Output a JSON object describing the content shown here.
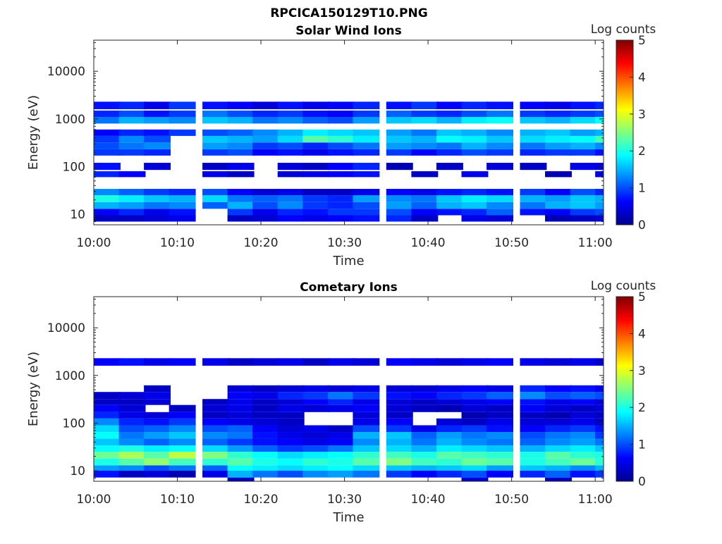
{
  "figure": {
    "filename": "RPCICA150129T10.PNG"
  },
  "colormap": {
    "name": "jet",
    "label": "Log counts",
    "range": [
      0,
      5
    ],
    "ticks": [
      "0",
      "1",
      "2",
      "3",
      "4",
      "5"
    ],
    "stops": [
      "#00008f",
      "#0000ff",
      "#0080ff",
      "#00ffff",
      "#80ff80",
      "#ffff00",
      "#ff8000",
      "#ff0000",
      "#800000"
    ]
  },
  "chart_data": [
    {
      "type": "heatmap",
      "title": "Solar Wind Ions",
      "xlabel": "Time",
      "ylabel": "Energy (eV)",
      "yscale": "log",
      "ylim": [
        6,
        45000
      ],
      "xlim": [
        "10:00",
        "11:01"
      ],
      "x_ticks": [
        "10:00",
        "10:10",
        "10:20",
        "10:30",
        "10:40",
        "10:50",
        "11:00"
      ],
      "y_ticks": [
        "10",
        "100",
        "1000",
        "10000"
      ],
      "time_columns": [
        "10:00",
        "10:03",
        "10:06",
        "10:09",
        "10:13",
        "10:16",
        "10:19",
        "10:22",
        "10:25",
        "10:28",
        "10:31",
        "10:35",
        "10:38",
        "10:41",
        "10:44",
        "10:47",
        "10:51",
        "10:54",
        "10:57",
        "11:00"
      ],
      "bands": [
        {
          "e_min": 7,
          "e_max": 9.5,
          "values": [
            0.3,
            0.3,
            0.4,
            0.5,
            0,
            0.3,
            0.4,
            0.6,
            0.5,
            0.6,
            0.7,
            0.8,
            0.3,
            0,
            0.5,
            0.4,
            0,
            0.2,
            0.3,
            0.4
          ]
        },
        {
          "e_min": 9.5,
          "e_max": 13,
          "values": [
            0.6,
            0.8,
            0.5,
            0.7,
            0,
            0.9,
            0.5,
            0.8,
            0.7,
            0.9,
            0.9,
            1.0,
            0.6,
            0.7,
            0.8,
            1.1,
            0.7,
            0.6,
            0.9,
            1.0
          ]
        },
        {
          "e_min": 13,
          "e_max": 18,
          "values": [
            1.5,
            1.4,
            1.2,
            1.3,
            1.1,
            1.5,
            1.0,
            1.3,
            0.9,
            0.8,
            1.0,
            1.4,
            1.1,
            1.5,
            1.6,
            1.3,
            1.2,
            1.5,
            1.6,
            1.4
          ]
        },
        {
          "e_min": 18,
          "e_max": 25,
          "values": [
            2.0,
            1.8,
            1.6,
            1.5,
            1.7,
            1.2,
            1.1,
            1.2,
            0.9,
            0.8,
            1.4,
            1.3,
            1.2,
            1.6,
            1.8,
            1.7,
            1.5,
            1.4,
            1.6,
            1.5
          ]
        },
        {
          "e_min": 25,
          "e_max": 34,
          "values": [
            1.3,
            1.1,
            0.9,
            0.8,
            1.0,
            0.6,
            0.4,
            0.5,
            0.3,
            0.3,
            0.5,
            0.6,
            0.5,
            0.7,
            0.8,
            0.7,
            0.9,
            0.6,
            1.0,
            0.8
          ]
        },
        {
          "e_min": 60,
          "e_max": 80,
          "values": [
            0.8,
            0.6,
            0,
            0,
            0.5,
            0.3,
            0,
            0.4,
            0.5,
            0.6,
            0.7,
            0,
            0.3,
            0,
            0.5,
            0,
            0,
            0.2,
            0,
            0.4
          ]
        },
        {
          "e_min": 85,
          "e_max": 120,
          "values": [
            0.7,
            0,
            0.4,
            0,
            0.3,
            0.5,
            0,
            0.4,
            0.3,
            0.6,
            0.8,
            0.2,
            0,
            0.3,
            0,
            0.4,
            0.3,
            0,
            0.5,
            0.4
          ]
        },
        {
          "e_min": 170,
          "e_max": 230,
          "values": [
            0.9,
            0.9,
            0.8,
            0,
            0.9,
            1.0,
            0.6,
            0.7,
            0.5,
            0.7,
            0.8,
            0.9,
            0.6,
            0.8,
            1.0,
            0.9,
            0.8,
            0.9,
            0.9,
            0.7
          ]
        },
        {
          "e_min": 230,
          "e_max": 320,
          "values": [
            1.0,
            1.2,
            1.3,
            0,
            1.4,
            1.3,
            0.9,
            1.0,
            0.8,
            1.0,
            1.2,
            1.4,
            1.3,
            1.2,
            1.5,
            1.3,
            1.2,
            1.4,
            1.5,
            1.3
          ]
        },
        {
          "e_min": 320,
          "e_max": 440,
          "values": [
            0.9,
            1.3,
            1.0,
            0,
            1.6,
            1.5,
            1.4,
            1.7,
            2.3,
            2.1,
            1.8,
            1.6,
            1.5,
            1.9,
            1.8,
            1.6,
            1.7,
            1.8,
            1.9,
            2.2
          ]
        },
        {
          "e_min": 440,
          "e_max": 600,
          "values": [
            0.6,
            0.8,
            0.7,
            0.9,
            1.0,
            1.1,
            1.3,
            1.5,
            1.8,
            1.7,
            1.6,
            1.4,
            1.2,
            1.6,
            1.5,
            1.3,
            1.5,
            1.6,
            1.4,
            1.5
          ]
        },
        {
          "e_min": 800,
          "e_max": 1100,
          "values": [
            1.2,
            1.5,
            1.4,
            1.3,
            1.6,
            1.5,
            1.2,
            1.3,
            1.1,
            1.0,
            1.4,
            1.6,
            1.7,
            1.5,
            1.8,
            1.9,
            1.6,
            1.5,
            1.7,
            1.9
          ]
        },
        {
          "e_min": 1100,
          "e_max": 1500,
          "values": [
            0.8,
            1.0,
            0.7,
            0.9,
            1.2,
            1.0,
            0.8,
            0.9,
            0.7,
            0.6,
            0.9,
            1.1,
            0.9,
            0.8,
            1.0,
            1.2,
            0.9,
            0.8,
            0.9,
            1.0
          ]
        },
        {
          "e_min": 1600,
          "e_max": 2300,
          "values": [
            0.7,
            0.8,
            0.5,
            0.9,
            0.7,
            0.6,
            0.4,
            0.7,
            0.5,
            0.6,
            0.8,
            0.7,
            0.9,
            0.6,
            0.8,
            0.7,
            0.6,
            0.5,
            0.7,
            0.8
          ]
        }
      ]
    },
    {
      "type": "heatmap",
      "title": "Cometary Ions",
      "xlabel": "Time",
      "ylabel": "Energy (eV)",
      "yscale": "log",
      "ylim": [
        6,
        45000
      ],
      "xlim": [
        "10:00",
        "11:01"
      ],
      "x_ticks": [
        "10:00",
        "10:10",
        "10:20",
        "10:30",
        "10:40",
        "10:50",
        "11:00"
      ],
      "y_ticks": [
        "10",
        "100",
        "1000",
        "10000"
      ],
      "time_columns": [
        "10:00",
        "10:03",
        "10:06",
        "10:09",
        "10:13",
        "10:16",
        "10:19",
        "10:22",
        "10:25",
        "10:28",
        "10:31",
        "10:35",
        "10:38",
        "10:41",
        "10:44",
        "10:47",
        "10:51",
        "10:54",
        "10:57",
        "11:00"
      ],
      "bands": [
        {
          "e_min": 6,
          "e_max": 7.2,
          "values": [
            0,
            0,
            0,
            0,
            0,
            0.3,
            0,
            0,
            0,
            0,
            0,
            0,
            0,
            0,
            0.4,
            0,
            0,
            0.3,
            0,
            0
          ]
        },
        {
          "e_min": 7.2,
          "e_max": 10,
          "values": [
            0.7,
            0.3,
            0.4,
            0.2,
            0.5,
            1.5,
            1.2,
            1.0,
            1.3,
            1.4,
            1.2,
            0.9,
            0.6,
            0.8,
            1.0,
            0.6,
            0.8,
            1.1,
            0.7,
            0.9
          ]
        },
        {
          "e_min": 10,
          "e_max": 13,
          "values": [
            1.4,
            1.3,
            1.0,
            1.2,
            1.1,
            1.9,
            1.8,
            1.7,
            1.8,
            1.9,
            1.7,
            1.6,
            1.5,
            1.6,
            1.7,
            1.4,
            1.6,
            1.5,
            1.3,
            1.5
          ]
        },
        {
          "e_min": 13,
          "e_max": 18,
          "values": [
            2.0,
            2.3,
            2.6,
            2.2,
            2.1,
            2.3,
            2.0,
            1.9,
            2.1,
            2.0,
            2.3,
            2.5,
            2.2,
            2.1,
            2.4,
            2.3,
            2.0,
            2.2,
            2.4,
            2.1
          ]
        },
        {
          "e_min": 18,
          "e_max": 25,
          "values": [
            2.4,
            2.7,
            2.3,
            2.8,
            2.5,
            2.1,
            1.9,
            1.7,
            1.8,
            1.9,
            2.1,
            2.2,
            2.0,
            2.3,
            2.2,
            2.1,
            2.0,
            2.3,
            2.1,
            2.0
          ]
        },
        {
          "e_min": 25,
          "e_max": 34,
          "values": [
            1.9,
            2.0,
            1.8,
            1.9,
            1.7,
            1.4,
            1.1,
            0.9,
            1.0,
            1.2,
            1.6,
            1.7,
            1.5,
            1.8,
            1.7,
            1.6,
            1.5,
            1.7,
            1.8,
            1.6
          ]
        },
        {
          "e_min": 34,
          "e_max": 47,
          "values": [
            1.6,
            1.3,
            1.1,
            1.3,
            1.1,
            0.9,
            0.7,
            0.6,
            0.5,
            0.6,
            1.3,
            1.5,
            1.2,
            1.5,
            1.3,
            1.2,
            1.1,
            1.3,
            1.4,
            1.2
          ]
        },
        {
          "e_min": 47,
          "e_max": 65,
          "values": [
            1.9,
            1.2,
            1.4,
            1.6,
            1.3,
            1.2,
            0.7,
            0.5,
            0.4,
            0.5,
            1.5,
            1.6,
            1.1,
            1.4,
            1.2,
            1.3,
            1.0,
            1.2,
            1.3,
            0.9
          ]
        },
        {
          "e_min": 65,
          "e_max": 90,
          "values": [
            1.7,
            1.0,
            1.1,
            1.3,
            1.0,
            1.1,
            0.6,
            0.4,
            0.5,
            0.3,
            1.0,
            0.9,
            0.5,
            0.8,
            0.9,
            0.7,
            0.6,
            0.8,
            0.9,
            0.7
          ]
        },
        {
          "e_min": 90,
          "e_max": 125,
          "values": [
            1.3,
            0.8,
            0.7,
            0.9,
            0.6,
            0.5,
            0.4,
            0.3,
            0,
            0,
            0.5,
            0.6,
            0,
            0.4,
            0.3,
            0.5,
            0.4,
            0.4,
            0.5,
            0.3
          ]
        },
        {
          "e_min": 125,
          "e_max": 170,
          "values": [
            0.8,
            0.5,
            0.4,
            0.6,
            0.3,
            0.4,
            0.3,
            0.3,
            0,
            0,
            0.4,
            0.3,
            0,
            0,
            0.2,
            0.3,
            0.3,
            0.2,
            0.4,
            0.3
          ]
        },
        {
          "e_min": 170,
          "e_max": 240,
          "values": [
            0.6,
            0.4,
            0,
            0.3,
            0.4,
            0.5,
            0.3,
            0.5,
            0.4,
            0.5,
            0.6,
            0.4,
            0.3,
            0.2,
            0.4,
            0.3,
            0.6,
            0.4,
            0.3,
            0.4
          ]
        },
        {
          "e_min": 240,
          "e_max": 320,
          "values": [
            0.3,
            0.3,
            0.4,
            0,
            0.3,
            0.5,
            0.3,
            0.4,
            0.6,
            0.8,
            0.5,
            0.4,
            0.3,
            0.4,
            0.5,
            0.6,
            0.7,
            0.5,
            0.6,
            0.4
          ]
        },
        {
          "e_min": 320,
          "e_max": 450,
          "values": [
            0.3,
            0.4,
            0.5,
            0,
            0,
            0.6,
            0.5,
            0.8,
            0.9,
            1.2,
            0.9,
            0.7,
            0.6,
            0.8,
            0.9,
            1.1,
            1.3,
            1.0,
            1.1,
            1.0
          ]
        },
        {
          "e_min": 450,
          "e_max": 620,
          "values": [
            0,
            0,
            0.3,
            0,
            0,
            0.4,
            0.3,
            0.4,
            0.5,
            0.4,
            0.5,
            0.4,
            0.4,
            0.5,
            0.6,
            0.5,
            0.8,
            0.6,
            0.7,
            0.5
          ]
        },
        {
          "e_min": 1600,
          "e_max": 2300,
          "values": [
            0.6,
            0.7,
            0.5,
            0.6,
            0.5,
            0.3,
            0.4,
            0.5,
            0.3,
            0.5,
            0.4,
            0.6,
            0.5,
            0.4,
            0.5,
            0.6,
            0.5,
            0.4,
            0.5,
            0.3
          ]
        }
      ]
    }
  ]
}
